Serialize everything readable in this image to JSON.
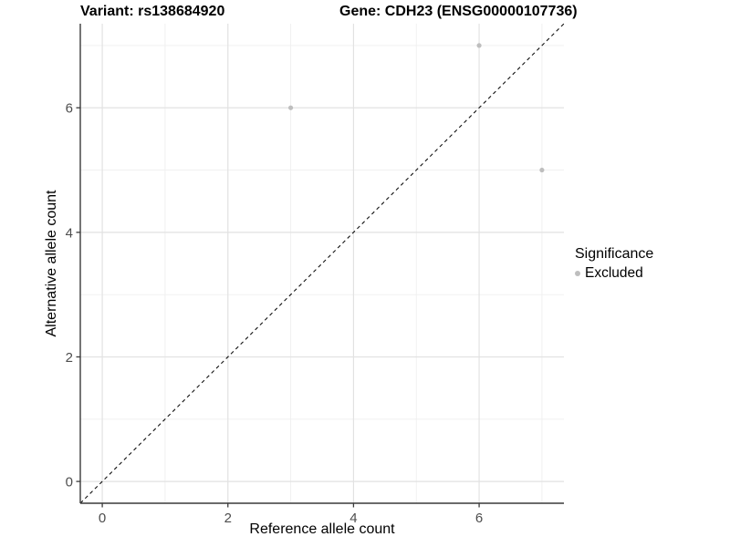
{
  "titles": {
    "left": "Variant: rs138684920",
    "right": "Gene: CDH23 (ENSG00000107736)"
  },
  "legend": {
    "title": "Significance",
    "items": [
      {
        "label": "Excluded",
        "color": "#bebebe"
      }
    ]
  },
  "chart_data": {
    "type": "scatter",
    "xlabel": "Reference allele count",
    "ylabel": "Alternative allele count",
    "xlim": [
      -0.35,
      7.35
    ],
    "ylim": [
      -0.35,
      7.35
    ],
    "x_ticks": [
      0,
      2,
      4,
      6
    ],
    "y_ticks": [
      0,
      2,
      4,
      6
    ],
    "x_minor_ticks": [
      1,
      3,
      5,
      7
    ],
    "y_minor_ticks": [
      1,
      3,
      5,
      7
    ],
    "grid": "major+minor",
    "legend_position": "right",
    "series": [
      {
        "name": "Excluded",
        "color": "#bebebe",
        "points": [
          [
            3,
            6
          ],
          [
            6,
            7
          ],
          [
            7,
            5
          ]
        ]
      }
    ],
    "reference_line": {
      "type": "identity y=x",
      "style": "dashed",
      "color": "#111111"
    }
  },
  "colors": {
    "background": "#ffffff",
    "grid_major": "#e2e2e2",
    "grid_minor": "#efefef",
    "axis_line": "#3a3a3a",
    "tick_text": "#4d4d4d",
    "point": "#bebebe"
  }
}
